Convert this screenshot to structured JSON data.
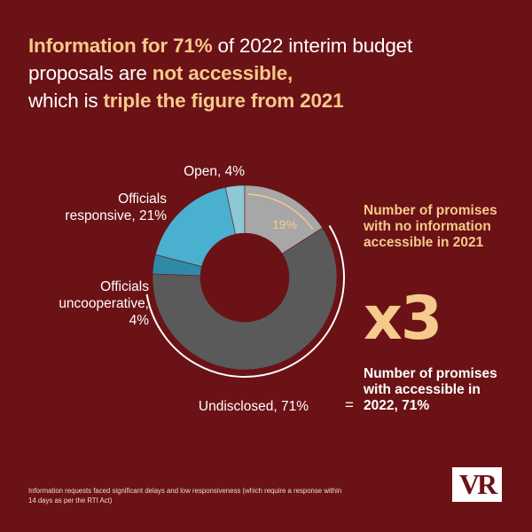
{
  "headline": {
    "part1": "Information for 71%",
    "part2": " of 2022 interim budget proposals are ",
    "part3": "not accessible,",
    "part4": " which is ",
    "part5": "triple the figure from 2021"
  },
  "chart_data": {
    "type": "pie",
    "donut": true,
    "slices": [
      {
        "label": "Open, 4%",
        "value": 4,
        "color": "#8cc8d6"
      },
      {
        "label": "19%",
        "value": 19,
        "color": "#a7a7a7"
      },
      {
        "label": "Undisclosed, 71%",
        "value": 71,
        "color": "#5a5a5a"
      },
      {
        "label": "Officials uncooperative, 4%",
        "value": 4,
        "color": "#2e8aa6"
      },
      {
        "label": "Officials responsive, 21%",
        "value": 21,
        "color": "#4ab0d0"
      }
    ]
  },
  "labels": {
    "open": "Open, 4%",
    "responsive_line1": "Officials",
    "responsive_line2": "responsive, 21%",
    "uncooperative_line1": "Officials",
    "uncooperative_line2": "uncooperative, 4%",
    "undisclosed": "Undisclosed, 71%",
    "inner_19": "19%"
  },
  "callouts": {
    "top": "Number of promises with no information accessible in 2021",
    "multiplier": "x3",
    "equals": "=",
    "bottom": "Number of promises with accessible in 2022, 71%"
  },
  "footnote": "Information requests faced significant delays and low responsiveness (which require a response within 14 days as per the RTI Act)",
  "logo": "VR",
  "colors": {
    "background": "#6b1216",
    "accent": "#f6c98c"
  }
}
